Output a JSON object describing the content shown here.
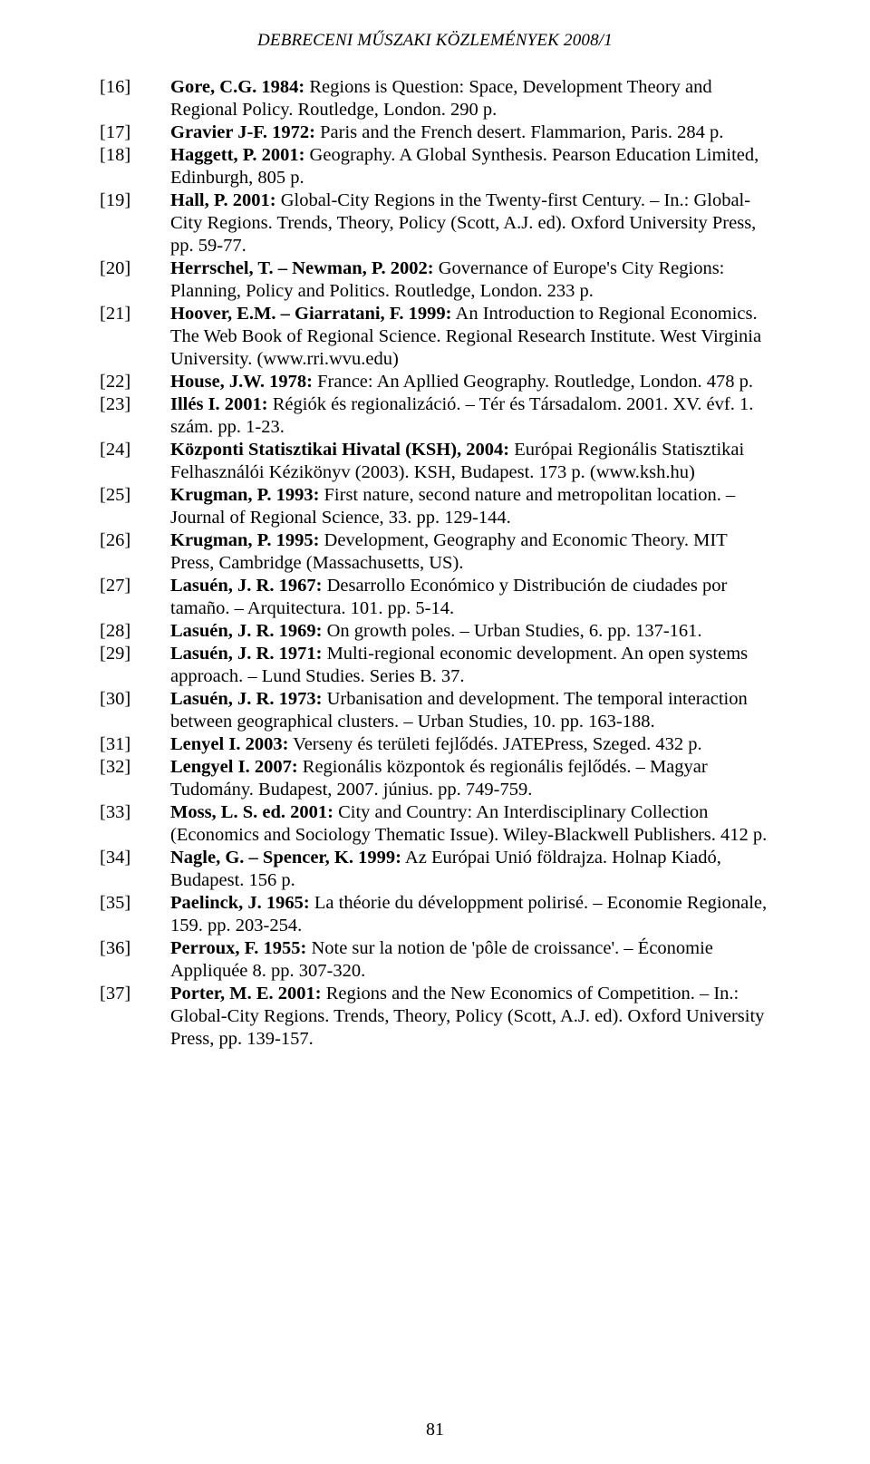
{
  "header": {
    "running_title": "DEBRECENI MŰSZAKI KÖZLEMÉNYEK 2008/1"
  },
  "page_number": "81",
  "refs": [
    {
      "num": "[16]",
      "bold": "Gore, C.G. 1984:",
      "rest": " Regions is Question: Space, Development Theory and Regional Policy. Routledge, London. 290 p."
    },
    {
      "num": "[17]",
      "bold": "Gravier J-F. 1972:",
      "rest": " Paris and the French desert. Flammarion, Paris. 284 p."
    },
    {
      "num": "[18]",
      "bold": "Haggett, P. 2001:",
      "rest": " Geography. A Global Synthesis. Pearson Education Limited, Edinburgh, 805 p."
    },
    {
      "num": "[19]",
      "bold": "Hall, P. 2001:",
      "rest": " Global-City Regions in the Twenty-first Century. – In.: Global-City Regions. Trends, Theory, Policy (Scott, A.J. ed). Oxford University Press, pp. 59-77."
    },
    {
      "num": "[20]",
      "bold": "Herrschel, T. – Newman, P. 2002:",
      "rest": " Governance of Europe's City Regions: Planning, Policy and Politics. Routledge, London. 233 p."
    },
    {
      "num": "[21]",
      "bold": "Hoover, E.M. – Giarratani, F. 1999:",
      "rest": " An Introduction to Regional Economics. The Web Book of Regional Science. Regional Research Institute. West Virginia University. (www.rri.wvu.edu)"
    },
    {
      "num": "[22]",
      "bold": "House, J.W. 1978:",
      "rest": " France: An Apllied Geography. Routledge, London. 478 p."
    },
    {
      "num": "[23]",
      "bold": "Illés I. 2001:",
      "rest": " Régiók és regionalizáció. – Tér és Társadalom. 2001. XV. évf. 1. szám. pp. 1-23."
    },
    {
      "num": "[24]",
      "bold": "Központi Statisztikai Hivatal (KSH), 2004:",
      "rest": " Európai Regionális Statisztikai Felhasználói Kézikönyv (2003). KSH, Budapest. 173 p. (www.ksh.hu)"
    },
    {
      "num": "[25]",
      "bold": "Krugman, P. 1993:",
      "rest": " First nature, second nature and metropolitan location. – Journal of Regional Science, 33. pp. 129-144."
    },
    {
      "num": "[26]",
      "bold": "Krugman, P. 1995:",
      "rest": " Development, Geography and Economic Theory. MIT Press, Cambridge (Massachusetts, US)."
    },
    {
      "num": "[27]",
      "bold": "Lasuén, J. R. 1967:",
      "rest": " Desarrollo Económico y Distribución de ciudades por tamaño. – Arquitectura. 101. pp. 5-14."
    },
    {
      "num": "[28]",
      "bold": "Lasuén, J. R. 1969:",
      "rest": " On growth poles. – Urban Studies, 6. pp. 137-161."
    },
    {
      "num": "[29]",
      "bold": "Lasuén, J. R. 1971:",
      "rest": " Multi-regional economic development. An open systems approach. – Lund Studies. Series B. 37."
    },
    {
      "num": "[30]",
      "bold": "Lasuén, J. R. 1973:",
      "rest": " Urbanisation and development. The temporal interaction between geographical clusters. – Urban Studies, 10. pp. 163-188."
    },
    {
      "num": "[31]",
      "bold": "Lenyel I. 2003:",
      "rest": " Verseny és területi fejlődés. JATEPress, Szeged. 432 p."
    },
    {
      "num": "[32]",
      "bold": "Lengyel I. 2007:",
      "rest": " Regionális központok és regionális fejlődés. – Magyar Tudomány. Budapest, 2007. június. pp. 749-759."
    },
    {
      "num": "[33]",
      "bold": "Moss, L. S. ed. 2001:",
      "rest": " City and Country: An Interdisciplinary Collection (Economics and Sociology Thematic Issue). Wiley-Blackwell Publishers. 412 p."
    },
    {
      "num": "[34]",
      "bold": "Nagle, G. – Spencer, K. 1999:",
      "rest": " Az Európai Unió földrajza. Holnap Kiadó, Budapest. 156 p."
    },
    {
      "num": "[35]",
      "bold": "Paelinck, J. 1965:",
      "rest": " La théorie du développment polirisé. – Economie Regionale, 159. pp. 203-254."
    },
    {
      "num": "[36]",
      "bold": "Perroux, F. 1955:",
      "rest": " Note sur la notion de 'pôle de croissance'. – Économie Appliquée 8. pp. 307-320."
    },
    {
      "num": "[37]",
      "bold": "Porter, M. E. 2001:",
      "rest": " Regions and the New Economics of Competition. – In.: Global-City Regions. Trends, Theory, Policy (Scott, A.J. ed). Oxford University Press, pp. 139-157."
    }
  ]
}
